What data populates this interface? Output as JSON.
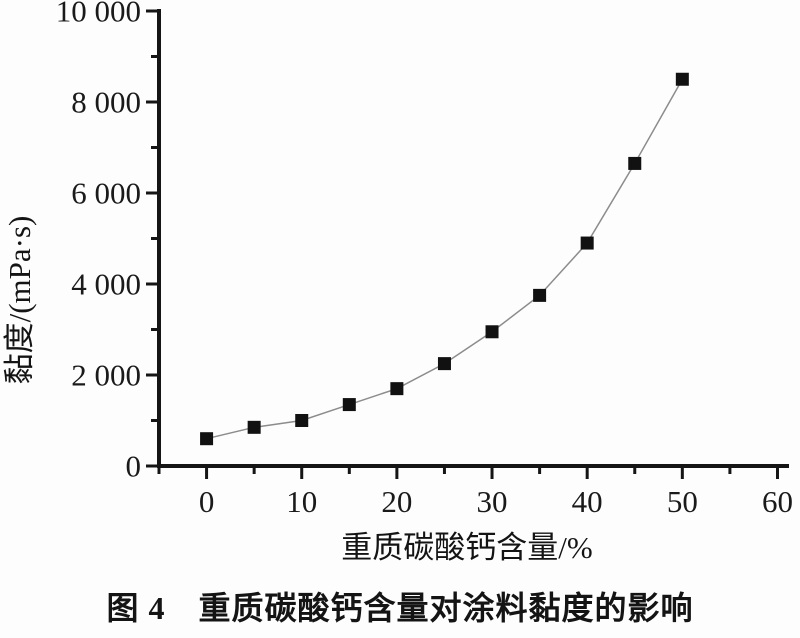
{
  "figure": {
    "caption": "图 4　重质碳酸钙含量对涂料黏度的影响"
  },
  "chart_data": {
    "type": "line",
    "title": "",
    "xlabel": "重质碳酸钙含量/%",
    "ylabel": "黏度/(mPa·s)",
    "x": [
      0,
      5,
      10,
      15,
      20,
      25,
      30,
      35,
      40,
      45,
      50
    ],
    "series": [
      {
        "name": "黏度",
        "values": [
          600,
          850,
          1000,
          1350,
          1700,
          2250,
          2950,
          3750,
          4900,
          6650,
          8500
        ]
      }
    ],
    "xlim": [
      -5,
      61
    ],
    "ylim": [
      0,
      10000
    ],
    "x_ticks": {
      "major": [
        0,
        10,
        20,
        30,
        40,
        50,
        60
      ],
      "labels": [
        "0",
        "10",
        "20",
        "30",
        "40",
        "50",
        "60"
      ],
      "minor_step": 5
    },
    "y_ticks": {
      "major": [
        0,
        2000,
        4000,
        6000,
        8000,
        10000
      ],
      "labels": [
        "0",
        "2 000",
        "4 000",
        "6 000",
        "8 000",
        "10 000"
      ],
      "minor_step": 1000
    },
    "grid": false,
    "legend": "none",
    "marker": "filled-square",
    "colors": {
      "marker": "#111111",
      "line": "#8c8c8c",
      "axis": "#151515",
      "text": "#1a1a1a"
    }
  }
}
